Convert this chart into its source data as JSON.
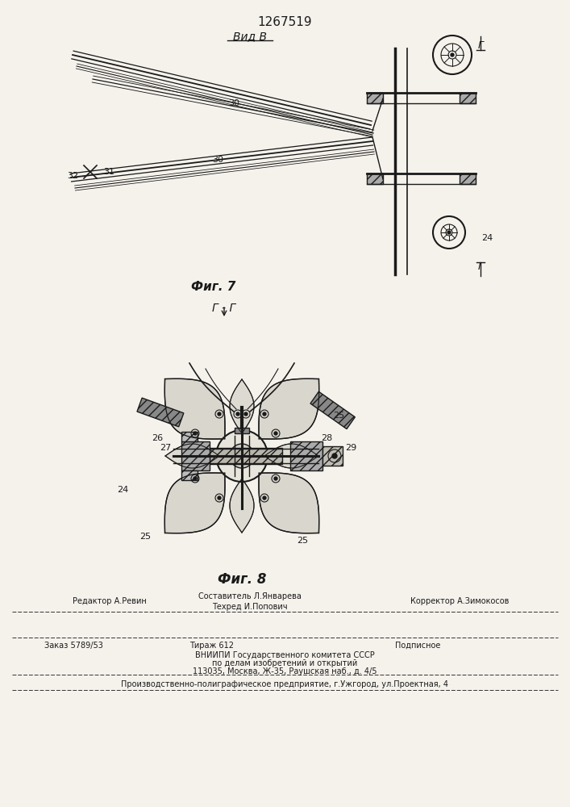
{
  "patent_number": "1267519",
  "view_label": "Вид В",
  "fig7_label": "Фиг. 7",
  "fig8_label": "Фиг. 8",
  "section_label": "Г - Г",
  "background_color": "#f5f2ec",
  "line_color": "#1a1a1a",
  "footer": {
    "editor": "Редактор А.Ревин",
    "composer": "Составитель Л.Январева",
    "techred": "Техред И.Попович",
    "corrector": "Корректор А.Зимокосов",
    "order": "Заказ 5789/53",
    "tirazh": "Тираж 612",
    "podpisnoe": "Подписное",
    "vnipi": "ВНИИПИ Государственного комитета СССР",
    "dela": "по делам изобретений и открытий",
    "address": "113035, Москва, Ж-35, Раушская наб., д. 4/5",
    "production": "Производственно-полиграфическое предприятие, г.Ужгород, ул.Проектная, 4"
  }
}
